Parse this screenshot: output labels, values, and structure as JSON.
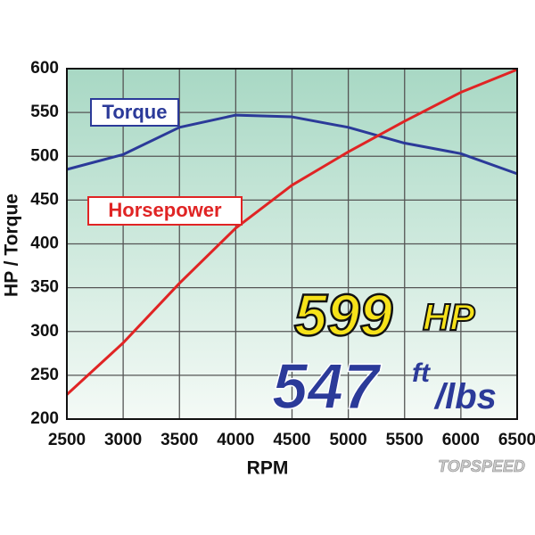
{
  "chart_data": {
    "type": "line",
    "x": [
      2500,
      3000,
      3500,
      4000,
      4500,
      5000,
      5500,
      6000,
      6500
    ],
    "series": [
      {
        "name": "Torque",
        "color": "#2b3a99",
        "values": [
          485,
          502,
          533,
          547,
          545,
          533,
          515,
          503,
          480
        ]
      },
      {
        "name": "Horsepower",
        "color": "#e02424",
        "values": [
          228,
          287,
          355,
          418,
          467,
          505,
          540,
          573,
          599
        ]
      }
    ],
    "xlim": [
      2500,
      6500
    ],
    "xticks": [
      2500,
      3000,
      3500,
      4000,
      4500,
      5000,
      5500,
      6000,
      6500
    ],
    "ylim": [
      200,
      600
    ],
    "yticks": [
      200,
      250,
      300,
      350,
      400,
      450,
      500,
      550,
      600
    ],
    "xlabel": "RPM",
    "ylabel": "HP / Torque",
    "grid": true,
    "annotations": [
      "599",
      "HP",
      "547",
      "ft",
      "/lbs"
    ],
    "watermark": "TOPSPEED"
  }
}
